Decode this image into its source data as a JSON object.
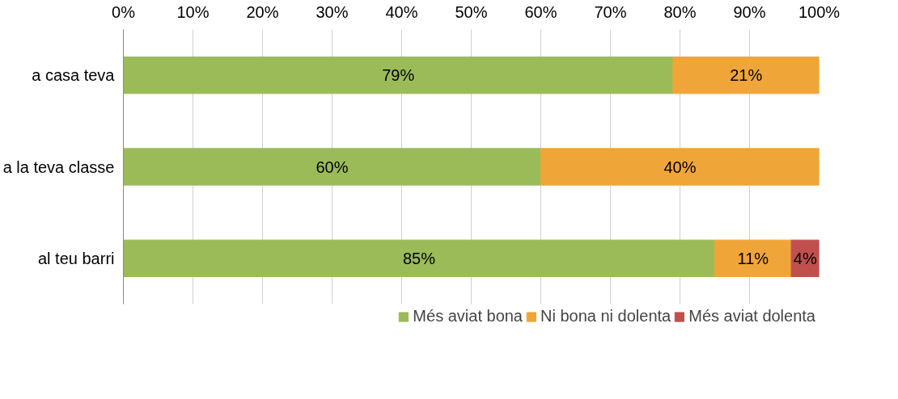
{
  "chart_data": {
    "type": "bar",
    "orientation": "horizontal",
    "stacked": true,
    "categories": [
      "a casa teva",
      "a la teva classe",
      "al teu barri"
    ],
    "series": [
      {
        "name": "Més aviat bona",
        "color": "#9bbb59",
        "values": [
          79,
          60,
          85
        ],
        "value_labels": [
          "79%",
          "60%",
          "85%"
        ]
      },
      {
        "name": "Ni bona ni dolenta",
        "color": "#f0a538",
        "values": [
          21,
          40,
          11
        ],
        "value_labels": [
          "21%",
          "40%",
          "11%"
        ]
      },
      {
        "name": "Més aviat dolenta",
        "color": "#c0504d",
        "values": [
          null,
          null,
          4
        ],
        "value_labels": [
          null,
          null,
          "4%"
        ]
      }
    ],
    "xlim": [
      0,
      100
    ],
    "xticks": [
      {
        "value": 0,
        "label": "0%"
      },
      {
        "value": 10,
        "label": "10%"
      },
      {
        "value": 20,
        "label": "20%"
      },
      {
        "value": 30,
        "label": "30%"
      },
      {
        "value": 40,
        "label": "40%"
      },
      {
        "value": 50,
        "label": "50%"
      },
      {
        "value": 60,
        "label": "60%"
      },
      {
        "value": 70,
        "label": "70%"
      },
      {
        "value": 80,
        "label": "80%"
      },
      {
        "value": 90,
        "label": "90%"
      },
      {
        "value": 100,
        "label": "100%"
      }
    ],
    "grid": "x",
    "legend": "bottom"
  }
}
